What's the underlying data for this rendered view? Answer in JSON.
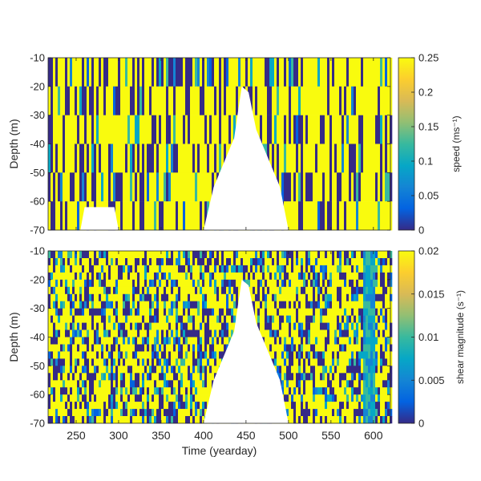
{
  "chart_data": [
    {
      "type": "heatmap",
      "title": "",
      "xlabel": "",
      "ylabel": "Depth (m)",
      "xlim": [
        217,
        620
      ],
      "ylim": [
        -70,
        -10
      ],
      "x_ticks": [
        250,
        300,
        350,
        400,
        450,
        500,
        550,
        600
      ],
      "y_ticks": [
        -10,
        -20,
        -30,
        -40,
        -50,
        -60,
        -70
      ],
      "y_tick_labels": [
        "-10",
        "-20",
        "-30",
        "-40",
        "-50",
        "-60",
        "-70"
      ],
      "x_tick_labels_shown": false,
      "colorbar": {
        "label": "speed (ms⁻¹)",
        "range": [
          0,
          0.25
        ],
        "ticks": [
          0,
          0.05,
          0.1,
          0.15,
          0.2,
          0.25
        ],
        "tick_labels": [
          "0",
          "0.05",
          "0.1",
          "0.15",
          "0.2",
          "0.25"
        ]
      },
      "colormap": "parula",
      "saturated_color": "#f9fb0e",
      "low_color": "#352a87",
      "background_color": "#ffffff",
      "data_gaps": [
        {
          "x_start": 255,
          "x_end": 300,
          "y_bottom": -70,
          "y_top": -62
        },
        {
          "x_start": 400,
          "x_end": 500,
          "y_bottom": -70,
          "y_top": -20
        }
      ],
      "notes": "dense noisy field, mostly saturated (yellow) with dark-blue streaks; solid yellow band near 590-600"
    },
    {
      "type": "heatmap",
      "title": "",
      "xlabel": "Time (yearday)",
      "ylabel": "Depth (m)",
      "xlim": [
        217,
        620
      ],
      "ylim": [
        -70,
        -10
      ],
      "x_ticks": [
        250,
        300,
        350,
        400,
        450,
        500,
        550,
        600
      ],
      "x_tick_labels": [
        "250",
        "300",
        "350",
        "400",
        "450",
        "500",
        "550",
        "600"
      ],
      "y_ticks": [
        -10,
        -20,
        -30,
        -40,
        -50,
        -60,
        -70
      ],
      "y_tick_labels": [
        "-10",
        "-20",
        "-30",
        "-40",
        "-50",
        "-60",
        "-70"
      ],
      "colorbar": {
        "label": "shear magnitude (s⁻¹)",
        "range": [
          0,
          0.02
        ],
        "ticks": [
          0,
          0.005,
          0.01,
          0.015,
          0.02
        ],
        "tick_labels": [
          "0",
          "0.005",
          "0.01",
          "0.015",
          "0.02"
        ]
      },
      "colormap": "parula",
      "saturated_color": "#f9fb0e",
      "low_color": "#352a87",
      "background_color": "#ffffff",
      "data_gaps": [
        {
          "x_start": 400,
          "x_end": 500,
          "y_bottom": -70,
          "y_top": -20
        }
      ],
      "notes": "dense noisy field of yellow and dark blue; smoother green/blue band near 590-600"
    }
  ],
  "colormap_stops": [
    "#352a87",
    "#0363e1",
    "#1485d4",
    "#06a7c6",
    "#38b99e",
    "#92bf73",
    "#d9ba56",
    "#fcce2e",
    "#f9fb0e"
  ]
}
